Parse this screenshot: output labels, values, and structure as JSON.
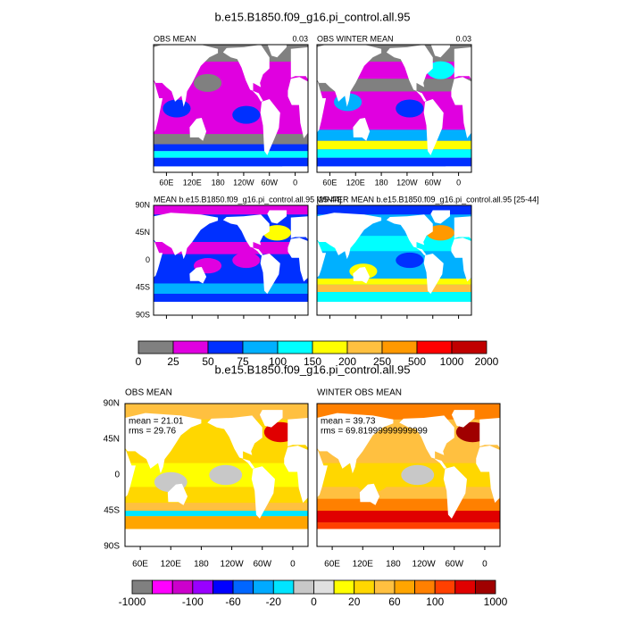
{
  "header": {
    "title": "b.e15.B1850.f09_g16.pi_control.all.95"
  },
  "top_panels": [
    {
      "title": "OBS MEAN",
      "corner": "0.03"
    },
    {
      "title": "OBS WINTER MEAN",
      "corner": "0.03"
    }
  ],
  "top_x_labels": [
    "60E",
    "120E",
    "180",
    "120W",
    "60W",
    "0"
  ],
  "mid_panels": [
    {
      "title": "MEAN b.e15.B1850.f09_g16.pi_control.all.95 [25-44]"
    },
    {
      "title": "WINTER MEAN b.e15.B1850.f09_g16.pi_control.all.95 [25-44]"
    }
  ],
  "mid_y_labels": [
    "90N",
    "45N",
    "0",
    "45S",
    "90S"
  ],
  "colorbar_1": {
    "labels": [
      "0",
      "25",
      "50",
      "75",
      "100",
      "150",
      "200",
      "250",
      "500",
      "1000",
      "2000"
    ],
    "colors": [
      "#808080",
      "#e000e0",
      "#0030ff",
      "#00b0ff",
      "#00ffff",
      "#ffff00",
      "#ffc040",
      "#ff9900",
      "#ff0000",
      "#c00000"
    ]
  },
  "section_title": "b.e15.B1850.f09_g16.pi_control.all.95",
  "bottom_panels": [
    {
      "title": "OBS MEAN",
      "mean": "mean = 21.01",
      "rms": "rms = 29.76"
    },
    {
      "title": "WINTER OBS MEAN",
      "mean": "mean = 39.73",
      "rms": "rms = 69.81999999999999"
    }
  ],
  "bottom_y_labels": [
    "90N",
    "45N",
    "0",
    "45S",
    "90S"
  ],
  "bottom_x_labels": [
    "60E",
    "120E",
    "180",
    "120W",
    "60W",
    "0"
  ],
  "colorbar_2": {
    "labels": [
      "-1000",
      "-100",
      "-60",
      "-20",
      "0",
      "20",
      "60",
      "100",
      "1000"
    ],
    "colors": [
      "#808080",
      "#ff00ff",
      "#cc00cc",
      "#9900ff",
      "#0000ff",
      "#0066ff",
      "#00aaff",
      "#00e5ff",
      "#c8c8c8",
      "#e0e0e0",
      "#ffff00",
      "#ffd700",
      "#ffc040",
      "#ffa500",
      "#ff8000",
      "#ff4000",
      "#e00000",
      "#a00000"
    ]
  }
}
